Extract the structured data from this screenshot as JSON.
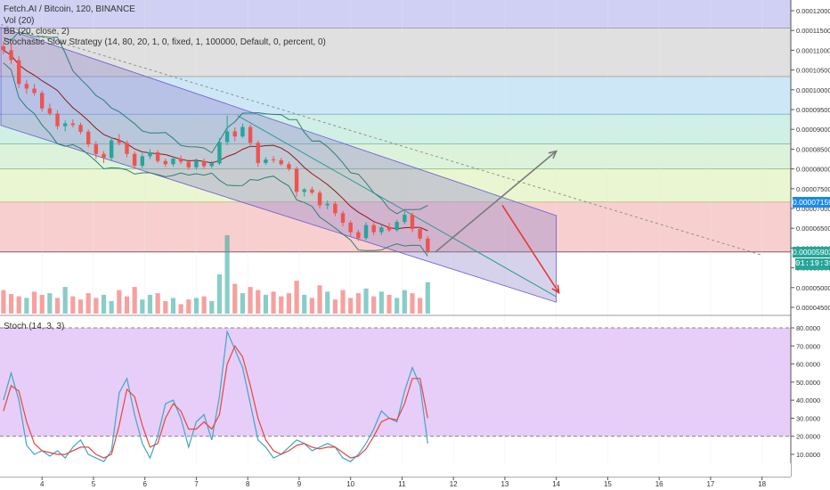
{
  "legend": {
    "symbol": "Fetch.AI / Bitcoin, 120, BINANCE",
    "vol": "Vol (20)",
    "bb": "BB (20, close, 2)",
    "strategy": "Stochastic Slow Strategy (14, 80, 20, 1, 0, fixed, 1, 100000, Default, 0, percent, 0)",
    "stoch": "Stoch (14, 3, 3)"
  },
  "badges": {
    "price_upper": "0.00007159",
    "price_current": "0.00005903",
    "countdown": "01:19:39"
  },
  "colors": {
    "up": "#26a69a",
    "down": "#ef5350",
    "bb": "#2e7d7a",
    "basis": "#8b1a1a",
    "channel": "#6a5acd",
    "stoch_k": "#3fa6c6",
    "stoch_d": "#e8453c",
    "stoch_bg": "#e3c9f7"
  },
  "chart_data": [
    {
      "type": "candlestick",
      "title": "Fetch.AI / Bitcoin, 120, BINANCE",
      "x_ticks": [
        "4",
        "5",
        "6",
        "7",
        "8",
        "9",
        "10",
        "11",
        "12",
        "13",
        "14",
        "15",
        "16",
        "17",
        "18"
      ],
      "x_range": [
        3.2,
        18.5
      ],
      "y_ticks": [
        "0.00004500",
        "0.00005000",
        "0.00005500",
        "0.00006000",
        "0.00006500",
        "0.00007000",
        "0.00007500",
        "0.00008000",
        "0.00008500",
        "0.00009000",
        "0.00009500",
        "0.00010000",
        "0.00010500",
        "0.00011000",
        "0.00011500",
        "0.00012000"
      ],
      "y_range": [
        4.44e-05,
        0.0001225
      ],
      "fib_levels": [
        0.0001156,
        0.0001033,
        9.38e-05,
        8.63e-05,
        8e-05,
        7.159e-05,
        5.903e-05
      ],
      "channel": {
        "upper": [
          [
            3.2,
            0.0001158
          ],
          [
            14.0,
            6.82e-05
          ]
        ],
        "lower": [
          [
            3.2,
            9.1e-05
          ],
          [
            14.0,
            4.63e-05
          ]
        ]
      },
      "trendline_dashed": [
        [
          3.2,
          0.0001165
        ],
        [
          18.0,
          5.82e-05
        ]
      ],
      "trendline_solid": [
        [
          7.8,
          9.35e-05
        ],
        [
          14.0,
          4.77e-05
        ]
      ],
      "arrow_up": [
        [
          11.65,
          5.9e-05
        ],
        [
          14.0,
          8.45e-05
        ]
      ],
      "arrow_down": [
        [
          12.95,
          7.08e-05
        ],
        [
          14.05,
          4.87e-05
        ]
      ],
      "candles": [
        [
          3.25,
          0.000111,
          0.0001122,
          0.000109,
          0.00011
        ],
        [
          3.4,
          0.00011,
          0.0001115,
          0.0001065,
          0.0001075
        ],
        [
          3.55,
          0.0001075,
          0.0001085,
          0.0001005,
          0.0001015
        ],
        [
          3.7,
          0.0001015,
          0.0001025,
          9.9e-05,
          0.0001003
        ],
        [
          3.85,
          0.0001003,
          0.0001015,
          9.85e-05,
          9.92e-05
        ],
        [
          4.0,
          9.92e-05,
          9.98e-05,
          9.45e-05,
          9.53e-05
        ],
        [
          4.15,
          9.53e-05,
          9.65e-05,
          9.35e-05,
          9.4e-05
        ],
        [
          4.3,
          9.4e-05,
          9.48e-05,
          9e-05,
          9.08e-05
        ],
        [
          4.45,
          9.08e-05,
          9.22e-05,
          8.95e-05,
          9.15e-05
        ],
        [
          4.6,
          9.15e-05,
          9.25e-05,
          9.05e-05,
          9.11e-05
        ],
        [
          4.75,
          9.11e-05,
          9.17e-05,
          8.88e-05,
          8.94e-05
        ],
        [
          4.9,
          8.94e-05,
          9e-05,
          8.55e-05,
          8.62e-05
        ],
        [
          5.05,
          8.62e-05,
          8.7e-05,
          8.25e-05,
          8.38e-05
        ],
        [
          5.2,
          8.38e-05,
          8.45e-05,
          8.15e-05,
          8.28e-05
        ],
        [
          5.35,
          8.28e-05,
          8.8e-05,
          8.22e-05,
          8.72e-05
        ],
        [
          5.5,
          8.72e-05,
          8.88e-05,
          8.6e-05,
          8.66e-05
        ],
        [
          5.65,
          8.66e-05,
          8.72e-05,
          8.3e-05,
          8.38e-05
        ],
        [
          5.8,
          8.38e-05,
          8.44e-05,
          8e-05,
          8.08e-05
        ],
        [
          5.95,
          8.08e-05,
          8.4e-05,
          8.02e-05,
          8.32e-05
        ],
        [
          6.1,
          8.32e-05,
          8.5e-05,
          8.25e-05,
          8.42e-05
        ],
        [
          6.25,
          8.42e-05,
          8.48e-05,
          8.15e-05,
          8.2e-05
        ],
        [
          6.4,
          8.2e-05,
          8.26e-05,
          8.05e-05,
          8.12e-05
        ],
        [
          6.55,
          8.12e-05,
          8.32e-05,
          8.06e-05,
          8.26e-05
        ],
        [
          6.7,
          8.26e-05,
          8.34e-05,
          8.12e-05,
          8.18e-05
        ],
        [
          6.85,
          8.18e-05,
          8.24e-05,
          7.98e-05,
          8.04e-05
        ],
        [
          7.0,
          8.04e-05,
          8.26e-05,
          7.98e-05,
          8.2e-05
        ],
        [
          7.15,
          8.2e-05,
          8.26e-05,
          8e-05,
          8.07e-05
        ],
        [
          7.3,
          8.07e-05,
          8.2e-05,
          8.02e-05,
          8.14e-05
        ],
        [
          7.45,
          8.14e-05,
          8.78e-05,
          8.1e-05,
          8.68e-05
        ],
        [
          7.6,
          8.68e-05,
          9.35e-05,
          8.6e-05,
          8.95e-05
        ],
        [
          7.75,
          8.95e-05,
          9.05e-05,
          8.7e-05,
          8.82e-05
        ],
        [
          7.9,
          8.82e-05,
          9.15e-05,
          8.78e-05,
          9.06e-05
        ],
        [
          8.05,
          9.06e-05,
          9.12e-05,
          8.6e-05,
          8.66e-05
        ],
        [
          8.2,
          8.66e-05,
          8.72e-05,
          8.05e-05,
          8.15e-05
        ],
        [
          8.35,
          8.15e-05,
          8.3e-05,
          8.1e-05,
          8.24e-05
        ],
        [
          8.5,
          8.24e-05,
          8.32e-05,
          8.15e-05,
          8.22e-05
        ],
        [
          8.65,
          8.22e-05,
          8.28e-05,
          8.08e-05,
          8.12e-05
        ],
        [
          8.8,
          8.12e-05,
          8.18e-05,
          7.95e-05,
          8e-05
        ],
        [
          8.95,
          8e-05,
          8.06e-05,
          7.3e-05,
          7.42e-05
        ],
        [
          9.1,
          7.42e-05,
          7.52e-05,
          7.3e-05,
          7.48e-05
        ],
        [
          9.25,
          7.48e-05,
          7.55e-05,
          7.35e-05,
          7.4e-05
        ],
        [
          9.4,
          7.4e-05,
          7.46e-05,
          7e-05,
          7.08e-05
        ],
        [
          9.55,
          7.08e-05,
          7.2e-05,
          6.98e-05,
          7.12e-05
        ],
        [
          9.7,
          7.12e-05,
          7.18e-05,
          6.8e-05,
          6.88e-05
        ],
        [
          9.85,
          6.88e-05,
          6.94e-05,
          6.55e-05,
          6.64e-05
        ],
        [
          10.0,
          6.64e-05,
          6.7e-05,
          6.3e-05,
          6.4e-05
        ],
        [
          10.15,
          6.4e-05,
          6.46e-05,
          6.18e-05,
          6.25e-05
        ],
        [
          10.3,
          6.25e-05,
          6.65e-05,
          6.2e-05,
          6.58e-05
        ],
        [
          10.45,
          6.58e-05,
          6.64e-05,
          6.32e-05,
          6.4e-05
        ],
        [
          10.6,
          6.4e-05,
          6.6e-05,
          6.33e-05,
          6.52e-05
        ],
        [
          10.75,
          6.52e-05,
          6.64e-05,
          6.4e-05,
          6.45e-05
        ],
        [
          10.9,
          6.45e-05,
          6.72e-05,
          6.42e-05,
          6.66e-05
        ],
        [
          11.05,
          6.66e-05,
          6.92e-05,
          6.6e-05,
          6.84e-05
        ],
        [
          11.2,
          6.84e-05,
          6.9e-05,
          6.4e-05,
          6.48e-05
        ],
        [
          11.35,
          6.48e-05,
          6.54e-05,
          6.18e-05,
          6.24e-05
        ],
        [
          11.5,
          6.24e-05,
          6.3e-05,
          5.86e-05,
          5.9e-05
        ]
      ]
    },
    {
      "type": "bar",
      "title": "Vol (20)",
      "x": [
        3.25,
        3.4,
        3.55,
        3.7,
        3.85,
        4.0,
        4.15,
        4.3,
        4.45,
        4.6,
        4.75,
        4.9,
        5.05,
        5.2,
        5.35,
        5.5,
        5.65,
        5.8,
        5.95,
        6.1,
        6.25,
        6.4,
        6.55,
        6.7,
        6.85,
        7.0,
        7.15,
        7.3,
        7.45,
        7.6,
        7.75,
        7.9,
        8.05,
        8.2,
        8.35,
        8.5,
        8.65,
        8.8,
        8.95,
        9.1,
        9.25,
        9.4,
        9.55,
        9.7,
        9.85,
        10.0,
        10.15,
        10.3,
        10.45,
        10.6,
        10.75,
        10.9,
        11.05,
        11.2,
        11.35,
        11.5
      ],
      "values": [
        0.3,
        0.25,
        0.22,
        0.2,
        0.28,
        0.24,
        0.26,
        0.2,
        0.34,
        0.22,
        0.18,
        0.26,
        0.2,
        0.24,
        0.16,
        0.3,
        0.22,
        0.34,
        0.18,
        0.24,
        0.26,
        0.16,
        0.2,
        0.12,
        0.18,
        0.2,
        0.22,
        0.16,
        0.5,
        1.0,
        0.38,
        0.26,
        0.34,
        0.3,
        0.24,
        0.28,
        0.22,
        0.26,
        0.42,
        0.24,
        0.2,
        0.36,
        0.28,
        0.18,
        0.3,
        0.2,
        0.26,
        0.32,
        0.22,
        0.28,
        0.24,
        0.2,
        0.3,
        0.26,
        0.2,
        0.4
      ],
      "up": [
        false,
        false,
        false,
        true,
        false,
        false,
        true,
        false,
        true,
        false,
        false,
        false,
        false,
        true,
        true,
        false,
        false,
        false,
        true,
        true,
        false,
        false,
        true,
        false,
        false,
        true,
        false,
        true,
        true,
        true,
        false,
        true,
        false,
        false,
        true,
        false,
        false,
        false,
        false,
        true,
        false,
        false,
        true,
        false,
        false,
        false,
        false,
        true,
        false,
        true,
        false,
        true,
        true,
        false,
        false,
        true
      ]
    },
    {
      "type": "line",
      "title": "Stoch (14, 3, 3)",
      "y_ticks": [
        "10.0000",
        "20.0000",
        "30.0000",
        "40.0000",
        "50.0000",
        "60.0000",
        "70.0000",
        "80.0000"
      ],
      "y_range": [
        0,
        85
      ],
      "bands": [
        20,
        80
      ],
      "x": [
        3.25,
        3.4,
        3.55,
        3.7,
        3.85,
        4.0,
        4.15,
        4.3,
        4.45,
        4.6,
        4.75,
        4.9,
        5.05,
        5.2,
        5.35,
        5.5,
        5.65,
        5.8,
        5.95,
        6.1,
        6.25,
        6.4,
        6.55,
        6.7,
        6.85,
        7.0,
        7.15,
        7.3,
        7.45,
        7.6,
        7.75,
        7.9,
        8.05,
        8.2,
        8.35,
        8.5,
        8.65,
        8.8,
        8.95,
        9.1,
        9.25,
        9.4,
        9.55,
        9.7,
        9.85,
        10.0,
        10.15,
        10.3,
        10.45,
        10.6,
        10.75,
        10.9,
        11.05,
        11.2,
        11.35,
        11.5
      ],
      "series": [
        {
          "name": "K",
          "values": [
            40,
            55,
            40,
            15,
            10,
            12,
            9,
            12,
            8,
            14,
            18,
            10,
            8,
            6,
            12,
            44,
            52,
            32,
            16,
            8,
            20,
            38,
            40,
            30,
            14,
            28,
            32,
            18,
            42,
            78,
            68,
            58,
            38,
            18,
            14,
            8,
            10,
            14,
            18,
            16,
            12,
            14,
            16,
            14,
            8,
            6,
            10,
            16,
            24,
            34,
            30,
            28,
            45,
            58,
            48,
            16
          ]
        },
        {
          "name": "D",
          "values": [
            34,
            48,
            45,
            28,
            16,
            12,
            11,
            10,
            10,
            12,
            14,
            14,
            10,
            8,
            10,
            26,
            46,
            42,
            26,
            14,
            16,
            30,
            38,
            34,
            24,
            24,
            28,
            24,
            32,
            60,
            70,
            64,
            48,
            30,
            18,
            12,
            10,
            12,
            15,
            16,
            14,
            13,
            14,
            14,
            11,
            8,
            9,
            13,
            20,
            28,
            30,
            29,
            38,
            52,
            52,
            30
          ]
        }
      ]
    }
  ]
}
